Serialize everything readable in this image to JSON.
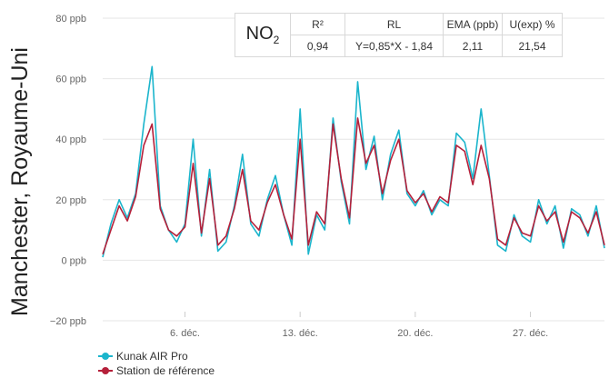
{
  "side_title": "Manchester, Royaume-Uni",
  "table": {
    "pollutant_main": "NO",
    "pollutant_sub": "2",
    "headers": [
      "R²",
      "RL",
      "EMA (ppb)",
      "U(exp) %"
    ],
    "values": [
      "0,94",
      "Y=0,85*X - 1,84",
      "2,11",
      "21,54"
    ]
  },
  "legend": [
    {
      "label": "Kunak AIR Pro",
      "color": "#1bb5cc"
    },
    {
      "label": "Station de référence",
      "color": "#b5203a"
    }
  ],
  "chart_data": {
    "type": "line",
    "ylim": [
      -20,
      80
    ],
    "yticks": [
      -20,
      0,
      20,
      40,
      60,
      80
    ],
    "ytick_labels": [
      "−20 ppb",
      "0 ppb",
      "20 ppb",
      "40 ppb",
      "60 ppb",
      "80 ppb"
    ],
    "xlim": [
      1,
      31.5
    ],
    "xticks": [
      6,
      13,
      20,
      27
    ],
    "xtick_labels": [
      "6. déc.",
      "13. déc.",
      "20. déc.",
      "27. déc."
    ],
    "grid": true,
    "legend_position": "bottom-left",
    "series": [
      {
        "name": "Kunak AIR Pro",
        "color": "#1bb5cc",
        "x": [
          1.0,
          1.5,
          2.0,
          2.5,
          3.0,
          3.5,
          4.0,
          4.5,
          5.0,
          5.5,
          6.0,
          6.5,
          7.0,
          7.5,
          8.0,
          8.5,
          9.0,
          9.5,
          10.0,
          10.5,
          11.0,
          11.5,
          12.0,
          12.5,
          13.0,
          13.5,
          14.0,
          14.5,
          15.0,
          15.5,
          16.0,
          16.5,
          17.0,
          17.5,
          18.0,
          18.5,
          19.0,
          19.5,
          20.0,
          20.5,
          21.0,
          21.5,
          22.0,
          22.5,
          23.0,
          23.5,
          24.0,
          24.5,
          25.0,
          25.5,
          26.0,
          26.5,
          27.0,
          27.5,
          28.0,
          28.5,
          29.0,
          29.5,
          30.0,
          30.5,
          31.0,
          31.5
        ],
        "values": [
          1,
          12,
          20,
          14,
          22,
          45,
          64,
          18,
          10,
          6,
          12,
          40,
          8,
          30,
          3,
          6,
          18,
          35,
          12,
          8,
          20,
          28,
          15,
          5,
          50,
          2,
          15,
          10,
          47,
          26,
          12,
          59,
          30,
          41,
          20,
          35,
          43,
          22,
          18,
          23,
          15,
          20,
          18,
          42,
          39,
          27,
          50,
          28,
          5,
          3,
          15,
          8,
          6,
          20,
          12,
          18,
          4,
          17,
          15,
          8,
          18,
          4
        ]
      },
      {
        "name": "Station de référence",
        "color": "#b5203a",
        "x": [
          1.0,
          1.5,
          2.0,
          2.5,
          3.0,
          3.5,
          4.0,
          4.5,
          5.0,
          5.5,
          6.0,
          6.5,
          7.0,
          7.5,
          8.0,
          8.5,
          9.0,
          9.5,
          10.0,
          10.5,
          11.0,
          11.5,
          12.0,
          12.5,
          13.0,
          13.5,
          14.0,
          14.5,
          15.0,
          15.5,
          16.0,
          16.5,
          17.0,
          17.5,
          18.0,
          18.5,
          19.0,
          19.5,
          20.0,
          20.5,
          21.0,
          21.5,
          22.0,
          22.5,
          23.0,
          23.5,
          24.0,
          24.5,
          25.0,
          25.5,
          26.0,
          26.5,
          27.0,
          27.5,
          28.0,
          28.5,
          29.0,
          29.5,
          30.0,
          30.5,
          31.0,
          31.5
        ],
        "values": [
          2,
          10,
          18,
          13,
          21,
          38,
          45,
          17,
          10,
          8,
          11,
          32,
          9,
          27,
          5,
          8,
          17,
          30,
          13,
          10,
          19,
          25,
          15,
          7,
          40,
          5,
          16,
          12,
          45,
          27,
          14,
          47,
          32,
          38,
          22,
          33,
          40,
          23,
          19,
          22,
          16,
          21,
          19,
          38,
          36,
          25,
          38,
          27,
          7,
          5,
          14,
          9,
          8,
          18,
          13,
          16,
          6,
          16,
          14,
          9,
          16,
          5
        ]
      }
    ]
  }
}
